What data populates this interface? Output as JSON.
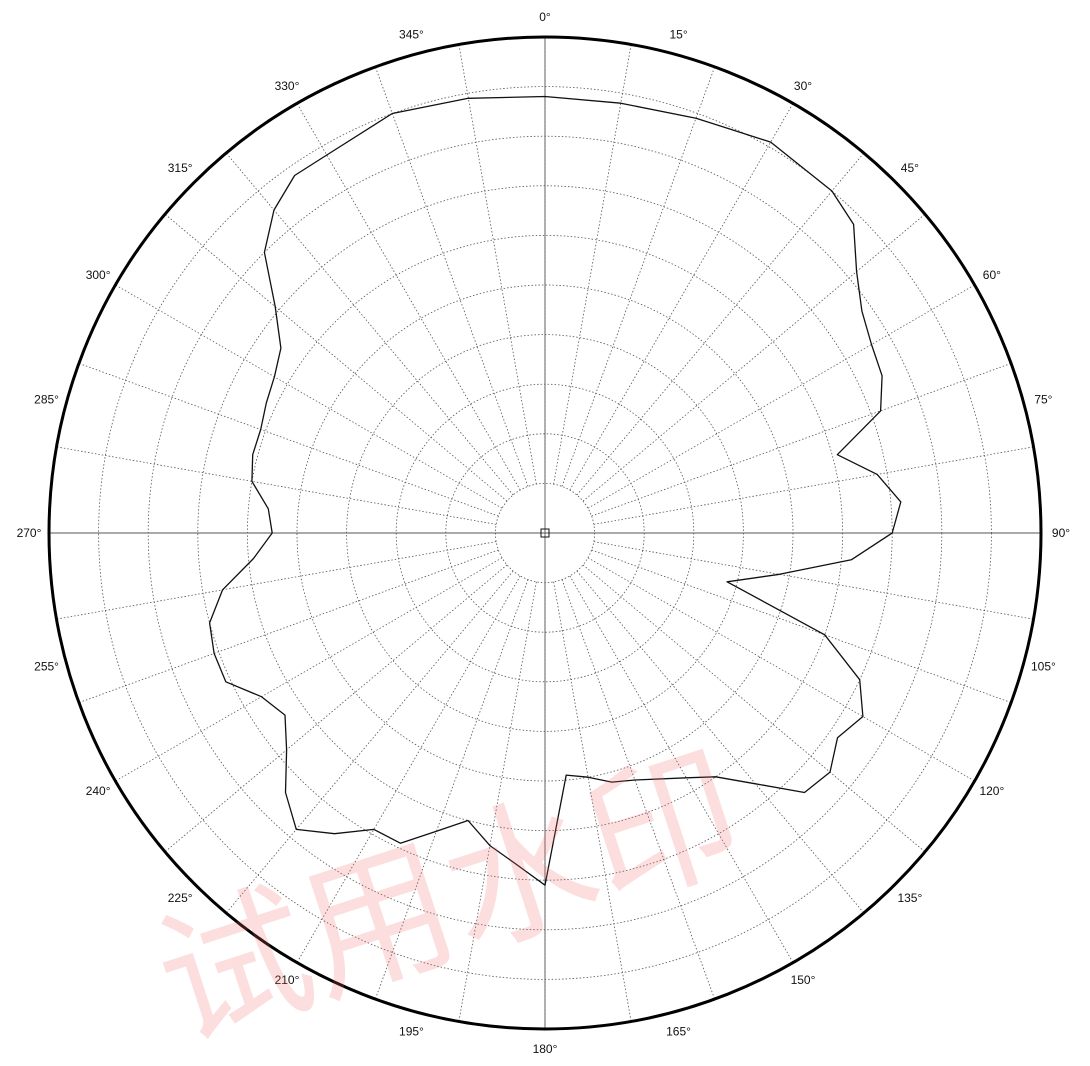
{
  "chart_data": {
    "type": "polar-line",
    "title": "",
    "angle_direction": "clockwise",
    "zero_angle": "top",
    "angular_ticks": [
      "0°",
      "15°",
      "30°",
      "45°",
      "60°",
      "75°",
      "90°",
      "105°",
      "120°",
      "135°",
      "150°",
      "165°",
      "180°",
      "195°",
      "210°",
      "225°",
      "240°",
      "255°",
      "270°",
      "285°",
      "300°",
      "315°",
      "330°",
      "345°"
    ],
    "radial_rings": 10,
    "radial_range": [
      0,
      1
    ],
    "grid": true,
    "colors": {
      "line": "#111111",
      "grid": "#555555",
      "outer_circle": "#000000"
    },
    "series": [
      {
        "name": "",
        "angles": [
          0,
          10,
          20,
          30,
          40,
          45,
          50,
          55,
          60,
          65,
          70,
          75,
          80,
          85,
          90,
          95,
          100,
          105,
          110,
          115,
          120,
          125,
          130,
          135,
          140,
          145,
          150,
          160,
          165,
          170,
          175,
          180,
          185,
          190,
          195,
          200,
          205,
          210,
          215,
          220,
          225,
          230,
          235,
          240,
          245,
          250,
          255,
          260,
          265,
          270,
          275,
          280,
          285,
          290,
          295,
          300,
          305,
          310,
          315,
          320,
          325,
          330,
          340,
          350
        ],
        "values": [
          0.88,
          0.88,
          0.89,
          0.91,
          0.9,
          0.88,
          0.82,
          0.78,
          0.76,
          0.75,
          0.72,
          0.61,
          0.68,
          0.72,
          0.7,
          0.62,
          0.48,
          0.38,
          0.6,
          0.7,
          0.74,
          0.72,
          0.75,
          0.74,
          0.66,
          0.6,
          0.57,
          0.53,
          0.52,
          0.5,
          0.49,
          0.71,
          0.67,
          0.64,
          0.6,
          0.64,
          0.69,
          0.69,
          0.74,
          0.78,
          0.74,
          0.68,
          0.64,
          0.66,
          0.71,
          0.71,
          0.7,
          0.66,
          0.59,
          0.55,
          0.56,
          0.6,
          0.61,
          0.61,
          0.62,
          0.63,
          0.65,
          0.71,
          0.8,
          0.85,
          0.88,
          0.88,
          0.9,
          0.89
        ]
      }
    ],
    "watermark": "试用水印"
  }
}
